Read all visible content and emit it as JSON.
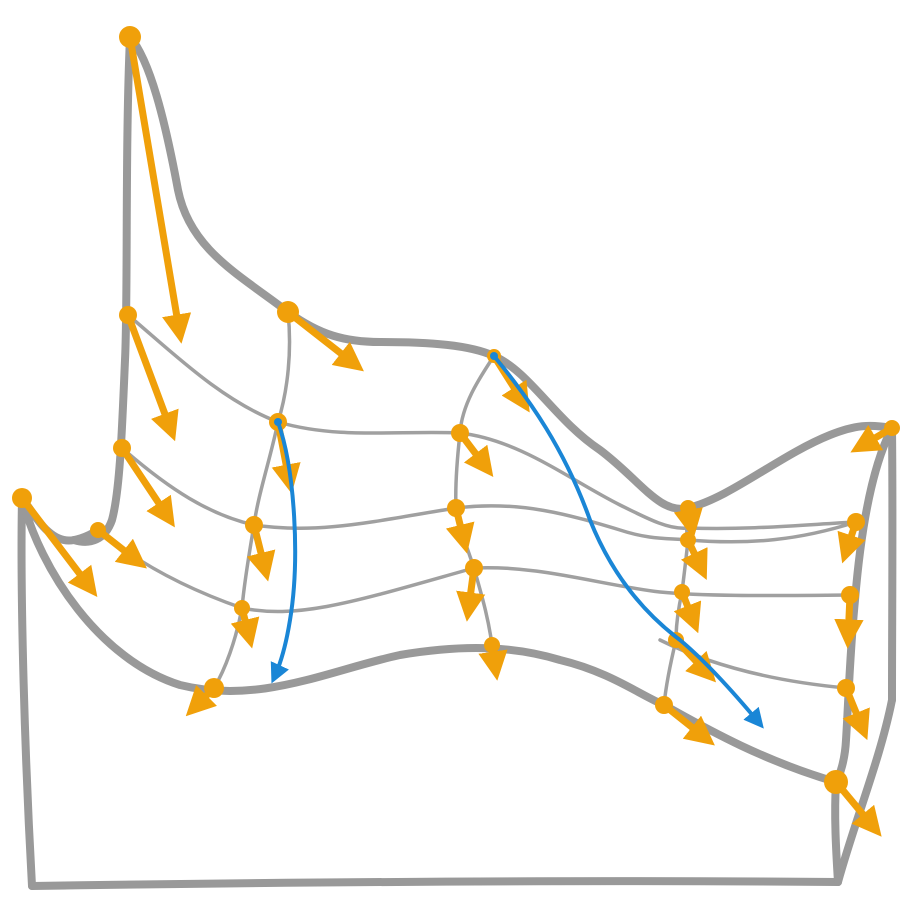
{
  "diagram": {
    "description_text": "",
    "colors": {
      "outline": "#999999",
      "grid": "#a0a0a0",
      "vector": "#f0a00a",
      "path": "#1a86d6",
      "background": "#ffffff"
    },
    "icons": {
      "vector_head": "arrowhead-icon",
      "sample_point": "dot-icon"
    }
  }
}
